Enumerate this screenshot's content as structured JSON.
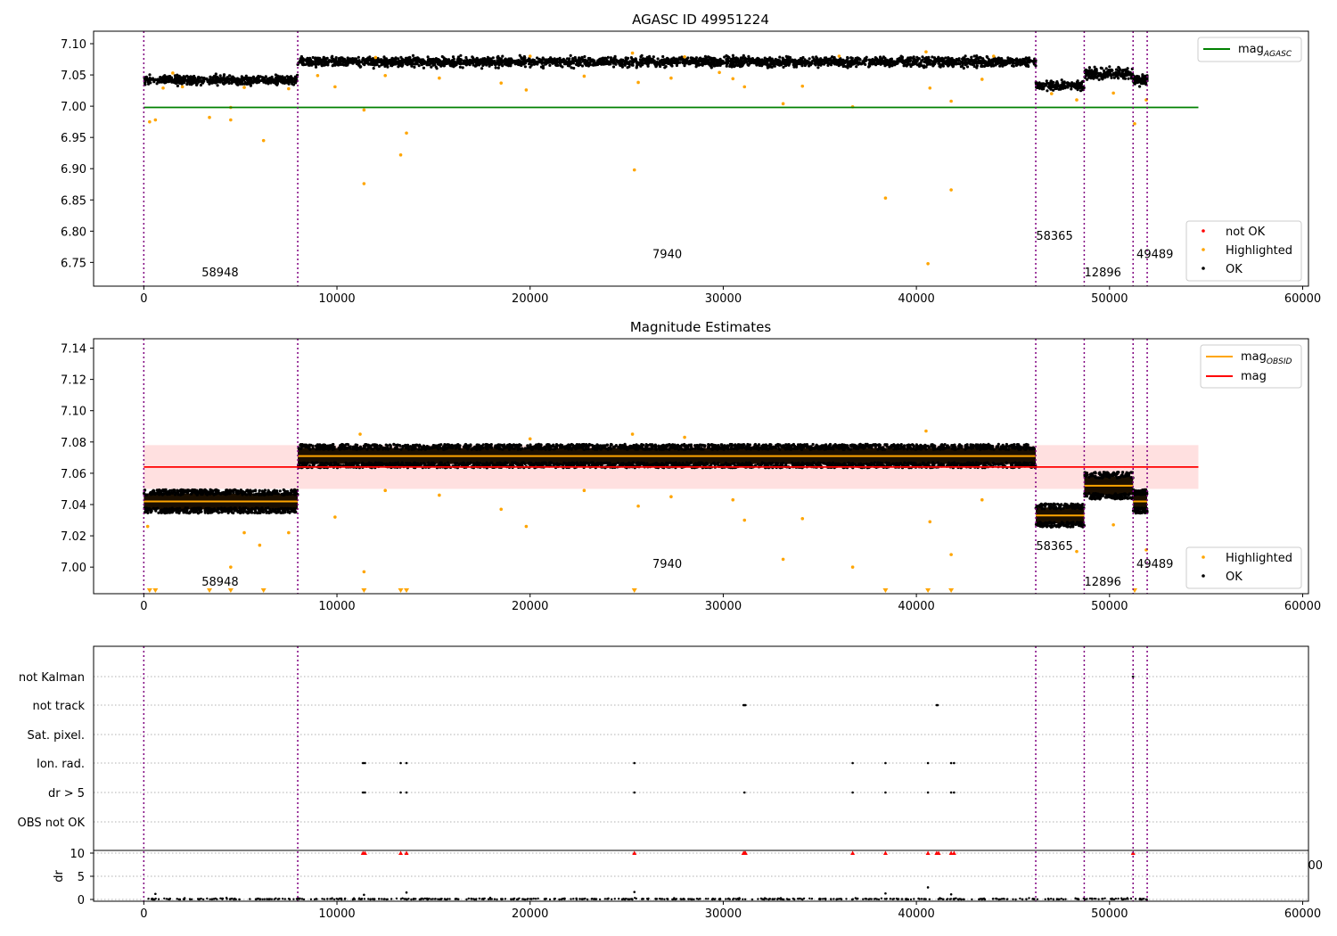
{
  "chart_data": [
    {
      "type": "scatter",
      "title": "AGASC ID 49951224",
      "xlim": [
        -2600,
        60300
      ],
      "ylim": [
        6.712,
        7.12
      ],
      "x_ticks": [
        0,
        10000,
        20000,
        30000,
        40000,
        50000,
        60000
      ],
      "y_ticks": [
        6.75,
        6.8,
        6.85,
        6.9,
        6.95,
        7.0,
        7.05,
        7.1
      ],
      "y_tick_labels": [
        "6.75",
        "6.80",
        "6.85",
        "6.90",
        "6.95",
        "7.00",
        "7.05",
        "7.10"
      ],
      "mag_agasc": 6.998,
      "line_x_range": [
        0,
        54600
      ],
      "obsid_boundaries": [
        0,
        7970,
        46180,
        48690,
        51220,
        51950
      ],
      "obsid_labels": [
        {
          "text": "58948",
          "x": 3950,
          "y": 6.728
        },
        {
          "text": "7940",
          "x": 27100,
          "y": 6.757
        },
        {
          "text": "58365",
          "x": 47150,
          "y": 6.786
        },
        {
          "text": "12896",
          "x": 49650,
          "y": 6.728
        },
        {
          "text": "49489",
          "x": 52350,
          "y": 6.757
        }
      ],
      "segments": [
        {
          "x0": 0,
          "x1": 7970,
          "mean": 7.042,
          "spread": 0.006
        },
        {
          "x0": 7970,
          "x1": 46180,
          "mean": 7.071,
          "spread": 0.006
        },
        {
          "x0": 46180,
          "x1": 48690,
          "mean": 7.033,
          "spread": 0.006
        },
        {
          "x0": 48690,
          "x1": 51220,
          "mean": 7.052,
          "spread": 0.007
        },
        {
          "x0": 51220,
          "x1": 51950,
          "mean": 7.042,
          "spread": 0.006
        }
      ],
      "highlighted_points": [
        [
          300,
          6.975
        ],
        [
          600,
          6.978
        ],
        [
          3400,
          6.982
        ],
        [
          4500,
          6.978
        ],
        [
          4500,
          6.998
        ],
        [
          6200,
          6.945
        ],
        [
          11400,
          6.876
        ],
        [
          11400,
          6.994
        ],
        [
          13300,
          6.922
        ],
        [
          13600,
          6.957
        ],
        [
          25400,
          6.898
        ],
        [
          33100,
          7.004
        ],
        [
          36700,
          6.999
        ],
        [
          38400,
          6.853
        ],
        [
          40600,
          6.748
        ],
        [
          41800,
          6.866
        ],
        [
          41800,
          7.008
        ],
        [
          48300,
          7.01
        ],
        [
          51300,
          6.972
        ],
        [
          51900,
          7.01
        ],
        [
          1000,
          7.029
        ],
        [
          2000,
          7.031
        ],
        [
          5200,
          7.03
        ],
        [
          7500,
          7.028
        ],
        [
          9000,
          7.049
        ],
        [
          9900,
          7.031
        ],
        [
          12500,
          7.049
        ],
        [
          15300,
          7.045
        ],
        [
          18500,
          7.037
        ],
        [
          19800,
          7.026
        ],
        [
          22800,
          7.048
        ],
        [
          25600,
          7.038
        ],
        [
          27300,
          7.045
        ],
        [
          29800,
          7.054
        ],
        [
          30500,
          7.044
        ],
        [
          31100,
          7.031
        ],
        [
          34100,
          7.032
        ],
        [
          40700,
          7.029
        ],
        [
          43400,
          7.043
        ],
        [
          47000,
          7.02
        ],
        [
          50200,
          7.021
        ],
        [
          1500,
          7.053
        ],
        [
          12000,
          7.078
        ],
        [
          20000,
          7.08
        ],
        [
          28000,
          7.079
        ],
        [
          36000,
          7.08
        ],
        [
          44000,
          7.08
        ],
        [
          40500,
          7.087
        ],
        [
          25300,
          7.085
        ]
      ],
      "legend_lines": [
        {
          "label": "mag",
          "sub": "AGASC",
          "color": "#008000"
        }
      ],
      "legend_points": [
        {
          "label": "not OK",
          "color": "#ff0000"
        },
        {
          "label": "Highlighted",
          "color": "#ffa500"
        },
        {
          "label": "OK",
          "color": "#000000"
        }
      ]
    },
    {
      "type": "scatter",
      "title": "Magnitude Estimates",
      "xlim": [
        -2600,
        60300
      ],
      "ylim": [
        6.983,
        7.146
      ],
      "x_ticks": [
        0,
        10000,
        20000,
        30000,
        40000,
        50000,
        60000
      ],
      "y_ticks": [
        7.0,
        7.02,
        7.04,
        7.06,
        7.08,
        7.1,
        7.12,
        7.14
      ],
      "y_tick_labels": [
        "7.00",
        "7.02",
        "7.04",
        "7.06",
        "7.08",
        "7.10",
        "7.12",
        "7.14"
      ],
      "mag": 7.064,
      "mag_band": [
        7.05,
        7.078
      ],
      "line_x_range": [
        0,
        54600
      ],
      "obsid_boundaries": [
        0,
        7970,
        46180,
        48690,
        51220,
        51950
      ],
      "obsid_labels": [
        {
          "text": "58948",
          "x": 3950,
          "y": 6.988
        },
        {
          "text": "7940",
          "x": 27100,
          "y": 6.9995
        },
        {
          "text": "58365",
          "x": 47150,
          "y": 7.011
        },
        {
          "text": "12896",
          "x": 49650,
          "y": 6.988
        },
        {
          "text": "49489",
          "x": 52350,
          "y": 6.9995
        }
      ],
      "segments": [
        {
          "x0": 0,
          "x1": 7970,
          "mean": 7.042,
          "spread": 0.006
        },
        {
          "x0": 7970,
          "x1": 46180,
          "mean": 7.071,
          "spread": 0.006
        },
        {
          "x0": 46180,
          "x1": 48690,
          "mean": 7.033,
          "spread": 0.006
        },
        {
          "x0": 48690,
          "x1": 51220,
          "mean": 7.052,
          "spread": 0.007
        },
        {
          "x0": 51220,
          "x1": 51950,
          "mean": 7.042,
          "spread": 0.006
        }
      ],
      "highlighted_points": [
        [
          200,
          7.026
        ],
        [
          4500,
          7.0
        ],
        [
          5200,
          7.022
        ],
        [
          6000,
          7.014
        ],
        [
          7500,
          7.022
        ],
        [
          9900,
          7.032
        ],
        [
          11400,
          6.997
        ],
        [
          12500,
          7.049
        ],
        [
          15300,
          7.046
        ],
        [
          18500,
          7.037
        ],
        [
          19800,
          7.026
        ],
        [
          22800,
          7.049
        ],
        [
          25600,
          7.039
        ],
        [
          27300,
          7.045
        ],
        [
          30500,
          7.043
        ],
        [
          31100,
          7.03
        ],
        [
          33100,
          7.005
        ],
        [
          34100,
          7.031
        ],
        [
          36700,
          7.0
        ],
        [
          40700,
          7.029
        ],
        [
          41800,
          7.008
        ],
        [
          43400,
          7.043
        ],
        [
          48300,
          7.01
        ],
        [
          50200,
          7.027
        ],
        [
          51900,
          7.011
        ],
        [
          11200,
          7.085
        ],
        [
          20000,
          7.082
        ],
        [
          25300,
          7.085
        ],
        [
          40500,
          7.087
        ],
        [
          28000,
          7.083
        ]
      ],
      "clipped_markers_x": [
        300,
        600,
        3400,
        4500,
        6200,
        11400,
        13300,
        13600,
        25400,
        38400,
        40600,
        41800,
        51300
      ],
      "legend_lines": [
        {
          "label": "mag",
          "sub": "OBSID",
          "color": "#ffa500"
        },
        {
          "label": "mag",
          "sub": "",
          "color": "#ff0000"
        }
      ],
      "legend_points": [
        {
          "label": "Highlighted",
          "color": "#ffa500"
        },
        {
          "label": "OK",
          "color": "#000000"
        }
      ]
    },
    {
      "type": "scatter",
      "xlim": [
        -2600,
        60300
      ],
      "x_ticks": [
        0,
        10000,
        20000,
        30000,
        40000,
        50000,
        60000
      ],
      "flag_rows": [
        "not Kalman",
        "not track",
        "Sat. pixel.",
        "Ion. rad.",
        "dr > 5",
        "OBS not OK"
      ],
      "flag_points": {
        "not Kalman": [
          51220
        ],
        "not track": [
          31050,
          31100,
          31150,
          41050,
          41100
        ],
        "Sat. pixel.": [],
        "Ion. rad.": [
          11350,
          11450,
          13300,
          13600,
          25400,
          36700,
          38400,
          40600,
          41800,
          41950
        ],
        "dr > 5": [
          11350,
          11450,
          13300,
          13600,
          25400,
          31100,
          36700,
          38400,
          40600,
          41800,
          41950
        ],
        "OBS not OK": []
      },
      "obsid_boundaries": [
        0,
        7970,
        46180,
        48690,
        51220,
        51950
      ],
      "dr_ylabel": "dr",
      "dr_ylim": [
        -0.5,
        10.5
      ],
      "dr_y_ticks": [
        0,
        5,
        10
      ],
      "dr_clipped_x": [
        11350,
        11450,
        13300,
        13600,
        25400,
        31050,
        31100,
        31150,
        36700,
        38400,
        40600,
        41050,
        41150,
        41800,
        41950,
        51220
      ],
      "dr_scatter_points": [
        [
          600,
          1.2
        ],
        [
          11400,
          1.0
        ],
        [
          13600,
          1.5
        ],
        [
          25400,
          1.6
        ],
        [
          38400,
          1.3
        ],
        [
          40600,
          2.6
        ],
        [
          41800,
          1.1
        ]
      ],
      "stray_label": "00"
    }
  ]
}
